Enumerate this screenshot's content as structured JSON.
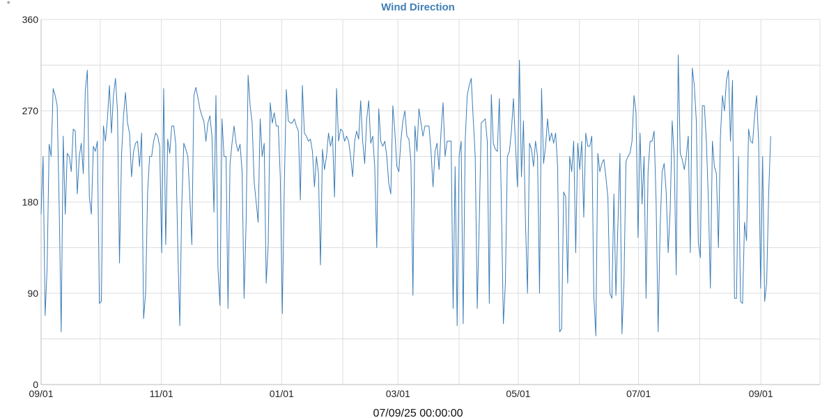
{
  "chart_data": {
    "type": "line",
    "title": "Wind Direction",
    "y_unit": "°",
    "footer": "07/09/25 00:00:00",
    "colors": {
      "line": "#3b7db6",
      "title": "#3f7fb5",
      "grid": "#dddddd"
    },
    "grid": true,
    "legend": "none",
    "ylim": [
      0,
      360
    ],
    "y_ticks": [
      0,
      90,
      180,
      270,
      360
    ],
    "xlim": [
      "2024-09-01",
      "2025-10-01"
    ],
    "x_ticks": [
      {
        "date": "2024-09-01",
        "label": "09/01"
      },
      {
        "date": "2024-11-01",
        "label": "11/01"
      },
      {
        "date": "2025-01-01",
        "label": "01/01"
      },
      {
        "date": "2025-03-01",
        "label": "03/01"
      },
      {
        "date": "2025-05-01",
        "label": "05/01"
      },
      {
        "date": "2025-07-01",
        "label": "07/01"
      },
      {
        "date": "2025-09-01",
        "label": "09/01"
      }
    ],
    "x_gridlines": [
      "2024-09-01",
      "2024-10-01",
      "2024-11-01",
      "2024-12-01",
      "2025-01-01",
      "2025-02-01",
      "2025-03-01",
      "2025-04-01",
      "2025-05-01",
      "2025-06-01",
      "2025-07-01",
      "2025-08-01",
      "2025-09-01",
      "2025-10-01"
    ],
    "series": [
      {
        "name": "",
        "x_start": "2024-09-01",
        "x_end": "2025-09-06",
        "values": [
          168,
          225,
          68,
          115,
          237,
          225,
          292,
          285,
          275,
          175,
          52,
          245,
          168,
          228,
          225,
          210,
          252,
          250,
          188,
          225,
          238,
          208,
          290,
          310,
          185,
          168,
          235,
          230,
          240,
          80,
          82,
          255,
          240,
          262,
          295,
          248,
          285,
          302,
          270,
          120,
          225,
          265,
          288,
          258,
          248,
          205,
          230,
          238,
          240,
          215,
          248,
          65,
          90,
          190,
          225,
          225,
          240,
          248,
          245,
          235,
          130,
          292,
          138,
          242,
          228,
          255,
          255,
          237,
          135,
          58,
          178,
          238,
          232,
          225,
          185,
          138,
          285,
          293,
          283,
          272,
          265,
          260,
          240,
          258,
          265,
          245,
          170,
          285,
          115,
          78,
          262,
          225,
          225,
          75,
          218,
          238,
          255,
          238,
          230,
          237,
          210,
          85,
          160,
          305,
          275,
          258,
          200,
          180,
          160,
          262,
          225,
          238,
          100,
          138,
          278,
          258,
          268,
          255,
          255,
          205,
          70,
          195,
          291,
          260,
          258,
          258,
          262,
          255,
          250,
          182,
          295,
          248,
          245,
          240,
          242,
          230,
          195,
          225,
          208,
          118,
          232,
          212,
          225,
          248,
          235,
          245,
          185,
          292,
          240,
          252,
          250,
          240,
          245,
          240,
          225,
          205,
          240,
          250,
          242,
          280,
          240,
          218,
          262,
          280,
          238,
          245,
          215,
          135,
          272,
          240,
          235,
          240,
          225,
          198,
          188,
          275,
          250,
          215,
          210,
          240,
          260,
          270,
          245,
          242,
          220,
          88,
          255,
          230,
          272,
          258,
          245,
          255,
          255,
          255,
          230,
          195,
          230,
          238,
          212,
          250,
          278,
          225,
          240,
          240,
          240,
          75,
          215,
          58,
          225,
          240,
          60,
          240,
          285,
          295,
          302,
          262,
          225,
          75,
          160,
          258,
          260,
          262,
          240,
          80,
          286,
          238,
          232,
          230,
          282,
          180,
          60,
          100,
          225,
          230,
          250,
          282,
          238,
          195,
          320,
          205,
          260,
          160,
          90,
          238,
          232,
          215,
          240,
          225,
          90,
          292,
          218,
          235,
          262,
          240,
          248,
          238,
          248,
          215,
          52,
          55,
          190,
          185,
          100,
          225,
          210,
          240,
          130,
          238,
          212,
          240,
          165,
          248,
          235,
          235,
          245,
          88,
          48,
          228,
          210,
          218,
          222,
          205,
          185,
          90,
          85,
          188,
          88,
          158,
          228,
          50,
          100,
          220,
          225,
          228,
          240,
          285,
          268,
          145,
          248,
          178,
          225,
          85,
          210,
          240,
          240,
          250,
          180,
          52,
          155,
          210,
          218,
          190,
          130,
          172,
          260,
          225,
          108,
          325,
          228,
          222,
          212,
          225,
          245,
          130,
          312,
          295,
          260,
          140,
          125,
          275,
          275,
          240,
          182,
          95,
          240,
          215,
          208,
          135,
          245,
          285,
          270,
          300,
          310,
          240,
          300,
          85,
          85,
          225,
          82,
          80,
          160,
          142,
          252,
          240,
          238,
          265,
          285,
          240,
          95,
          225,
          82,
          100,
          188,
          245
        ]
      }
    ]
  }
}
